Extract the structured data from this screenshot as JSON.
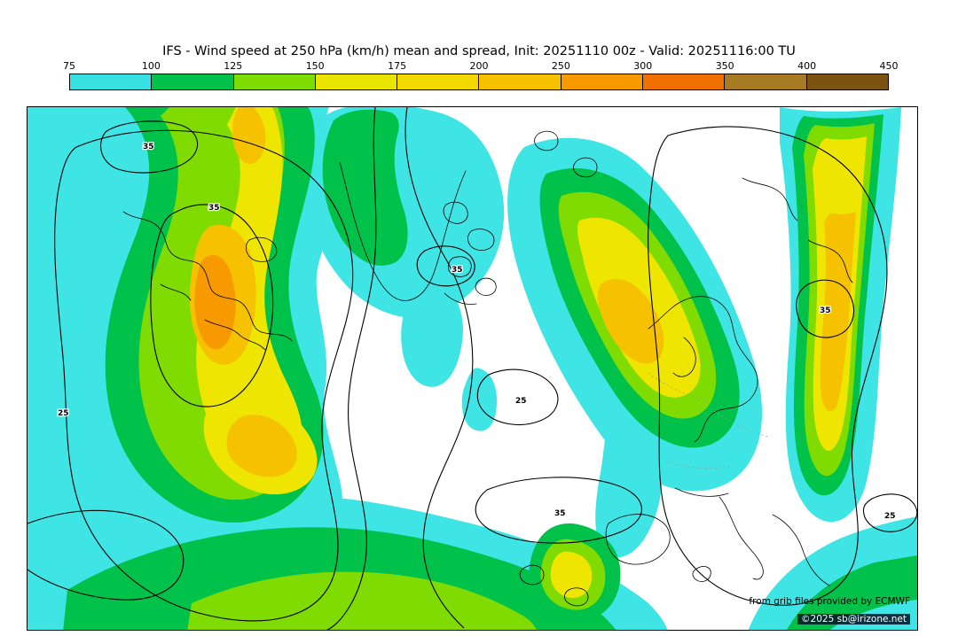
{
  "title": "IFS - Wind speed at 250 hPa (km/h) mean and spread, Init: 20251110 00z - Valid: 20251116:00 TU",
  "colorbar": {
    "tick_labels": [
      "75",
      "100",
      "125",
      "150",
      "175",
      "200",
      "250",
      "300",
      "350",
      "400",
      "450"
    ],
    "segment_colors": [
      "#38e1e1",
      "#00c24a",
      "#7fdc00",
      "#ebe400",
      "#f2d800",
      "#f6c200",
      "#f79a00",
      "#ef7000",
      "#a67b23",
      "#7c5412"
    ],
    "unit": "km/h"
  },
  "map": {
    "fill_colors": {
      "cyan": "#3fe4e4",
      "green": "#00c24a",
      "chartreuse": "#80dc00",
      "yellow": "#eee600",
      "amber": "#f6c200",
      "orange": "#f79a00"
    },
    "contour_labels": [
      "35",
      "35",
      "25",
      "35",
      "25",
      "35",
      "25",
      "35"
    ],
    "attribution_line1": "from grib files provided by ECMWF",
    "attribution_line2": "©2025 sb@irizone.net"
  }
}
